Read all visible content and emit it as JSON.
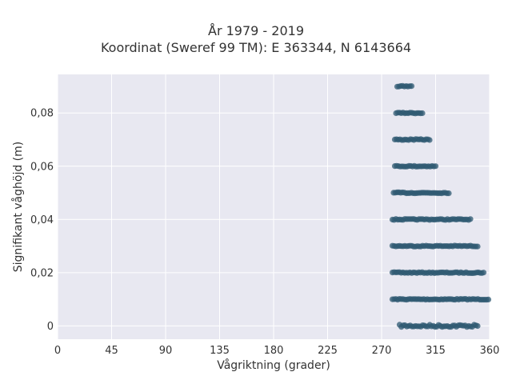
{
  "chart_data": {
    "type": "scatter",
    "title_lines": [
      "År 1979 - 2019",
      "Koordinat (Sweref 99 TM): E 363344, N 6143664"
    ],
    "xlabel": "Vågriktning (grader)",
    "ylabel": "Signifikant våghöjd (m)",
    "xlim": [
      0,
      360
    ],
    "ylim": [
      -0.005,
      0.0945
    ],
    "x_ticks": [
      0,
      45,
      90,
      135,
      180,
      225,
      270,
      315,
      360
    ],
    "x_tick_labels": [
      "0",
      "45",
      "90",
      "135",
      "180",
      "225",
      "270",
      "315",
      "360"
    ],
    "y_ticks": [
      0,
      0.02,
      0.04,
      0.06,
      0.08
    ],
    "y_tick_labels": [
      "0",
      "0,02",
      "0,04",
      "0,06",
      "0,08"
    ],
    "grid": true,
    "marker_color": "#2f5a72",
    "background_color": "#e8e8f1",
    "series": [
      {
        "bands": [
          {
            "y": 0.0,
            "x_min": 285,
            "x_max": 350
          },
          {
            "y": 0.01,
            "x_min": 279,
            "x_max": 359
          },
          {
            "y": 0.02,
            "x_min": 279,
            "x_max": 355
          },
          {
            "y": 0.03,
            "x_min": 279,
            "x_max": 350
          },
          {
            "y": 0.04,
            "x_min": 279,
            "x_max": 344
          },
          {
            "y": 0.05,
            "x_min": 280,
            "x_max": 326
          },
          {
            "y": 0.06,
            "x_min": 281,
            "x_max": 315
          },
          {
            "y": 0.07,
            "x_min": 281,
            "x_max": 310
          },
          {
            "y": 0.08,
            "x_min": 282,
            "x_max": 304
          },
          {
            "y": 0.09,
            "x_min": 283,
            "x_max": 295
          }
        ]
      }
    ]
  }
}
